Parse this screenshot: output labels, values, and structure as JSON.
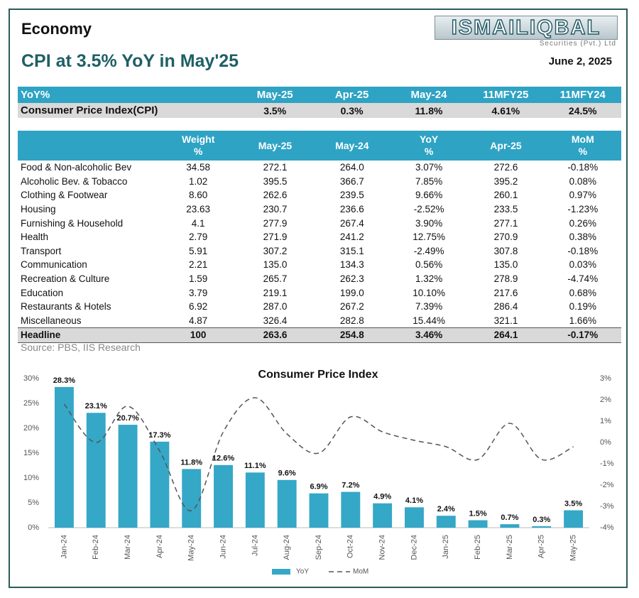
{
  "header": {
    "section": "Economy",
    "title": "CPI at 3.5% YoY in May'25",
    "logo": "ISMAILIQBAL",
    "logo_sub": "Securities (Pvt.) Ltd",
    "date": "June 2, 2025"
  },
  "summary_table": {
    "header": [
      "YoY%",
      "May-25",
      "Apr-25",
      "May-24",
      "11MFY25",
      "11MFY24"
    ],
    "rows": [
      [
        "Consumer Price Index(CPI)",
        "3.5%",
        "0.3%",
        "11.8%",
        "4.61%",
        "24.5%"
      ]
    ]
  },
  "detail_table": {
    "columns": [
      {
        "label": "Weight",
        "unit": "%"
      },
      {
        "label": "May-25"
      },
      {
        "label": "May-24"
      },
      {
        "label": "YoY",
        "unit": "%"
      },
      {
        "label": "Apr-25"
      },
      {
        "label": "MoM",
        "unit": "%"
      }
    ],
    "rows": [
      [
        "Food & Non-alcoholic Bev",
        "34.58",
        "272.1",
        "264.0",
        "3.07%",
        "272.6",
        "-0.18%"
      ],
      [
        "Alcoholic Bev. & Tobacco",
        "1.02",
        "395.5",
        "366.7",
        "7.85%",
        "395.2",
        "0.08%"
      ],
      [
        "Clothing & Footwear",
        "8.60",
        "262.6",
        "239.5",
        "9.66%",
        "260.1",
        "0.97%"
      ],
      [
        "Housing",
        "23.63",
        "230.7",
        "236.6",
        "-2.52%",
        "233.5",
        "-1.23%"
      ],
      [
        "Furnishing & Household",
        "4.1",
        "277.9",
        "267.4",
        "3.90%",
        "277.1",
        "0.26%"
      ],
      [
        "Health",
        "2.79",
        "271.9",
        "241.2",
        "12.75%",
        "270.9",
        "0.38%"
      ],
      [
        "Transport",
        "5.91",
        "307.2",
        "315.1",
        "-2.49%",
        "307.8",
        "-0.18%"
      ],
      [
        "Communication",
        "2.21",
        "135.0",
        "134.3",
        "0.56%",
        "135.0",
        "0.03%"
      ],
      [
        "Recreation & Culture",
        "1.59",
        "265.7",
        "262.3",
        "1.32%",
        "278.9",
        "-4.74%"
      ],
      [
        "Education",
        "3.79",
        "219.1",
        "199.0",
        "10.10%",
        "217.6",
        "0.68%"
      ],
      [
        "Restaurants & Hotels",
        "6.92",
        "287.0",
        "267.2",
        "7.39%",
        "286.4",
        "0.19%"
      ],
      [
        "Miscellaneous",
        "4.87",
        "326.4",
        "282.8",
        "15.44%",
        "321.1",
        "1.66%"
      ]
    ],
    "total": [
      "Headline",
      "100",
      "263.6",
      "254.8",
      "3.46%",
      "264.1",
      "-0.17%"
    ]
  },
  "source": "Source: PBS, IIS Research",
  "chart_data": {
    "type": "bar",
    "title": "Consumer Price Index",
    "categories": [
      "Jan-24",
      "Feb-24",
      "Mar-24",
      "Apr-24",
      "May-24",
      "Jun-24",
      "Jul-24",
      "Aug-24",
      "Sep-24",
      "Oct-24",
      "Nov-24",
      "Dec-24",
      "Jan-25",
      "Feb-25",
      "Mar-25",
      "Apr-25",
      "May-25"
    ],
    "series": [
      {
        "name": "YoY",
        "type": "bar",
        "color": "#35a7c7",
        "values": [
          28.3,
          23.1,
          20.7,
          17.3,
          11.8,
          12.6,
          11.1,
          9.6,
          6.9,
          7.2,
          4.9,
          4.1,
          2.4,
          1.5,
          0.7,
          0.3,
          3.5
        ],
        "value_labels": [
          "28.3%",
          "23.1%",
          "20.7%",
          "17.3%",
          "11.8%",
          "12.6%",
          "11.1%",
          "9.6%",
          "6.9%",
          "7.2%",
          "4.9%",
          "4.1%",
          "2.4%",
          "1.5%",
          "0.7%",
          "0.3%",
          "3.5%"
        ]
      },
      {
        "name": "MoM",
        "type": "line",
        "axis": "y2",
        "color": "#555555",
        "dashed": true,
        "values": [
          1.8,
          0.0,
          1.7,
          -0.4,
          -3.2,
          0.5,
          2.1,
          0.4,
          -0.5,
          1.2,
          0.5,
          0.1,
          -0.2,
          -0.8,
          0.9,
          -0.8,
          -0.2
        ]
      }
    ],
    "ylim": [
      0,
      30
    ],
    "yticks": [
      {
        "value": 0,
        "label": "0%"
      },
      {
        "value": 5,
        "label": "5%"
      },
      {
        "value": 10,
        "label": "10%"
      },
      {
        "value": 15,
        "label": "15%"
      },
      {
        "value": 20,
        "label": "20%"
      },
      {
        "value": 25,
        "label": "25%"
      },
      {
        "value": 30,
        "label": "30%"
      }
    ],
    "y2lim": [
      -4,
      3
    ],
    "y2ticks": [
      {
        "value": -4,
        "label": "-4%"
      },
      {
        "value": -3,
        "label": "-3%"
      },
      {
        "value": -2,
        "label": "-2%"
      },
      {
        "value": -1,
        "label": "-1%"
      },
      {
        "value": 0,
        "label": "0%"
      },
      {
        "value": 1,
        "label": "1%"
      },
      {
        "value": 2,
        "label": "2%"
      },
      {
        "value": 3,
        "label": "3%"
      }
    ],
    "grid": false,
    "legend": "bottom"
  }
}
